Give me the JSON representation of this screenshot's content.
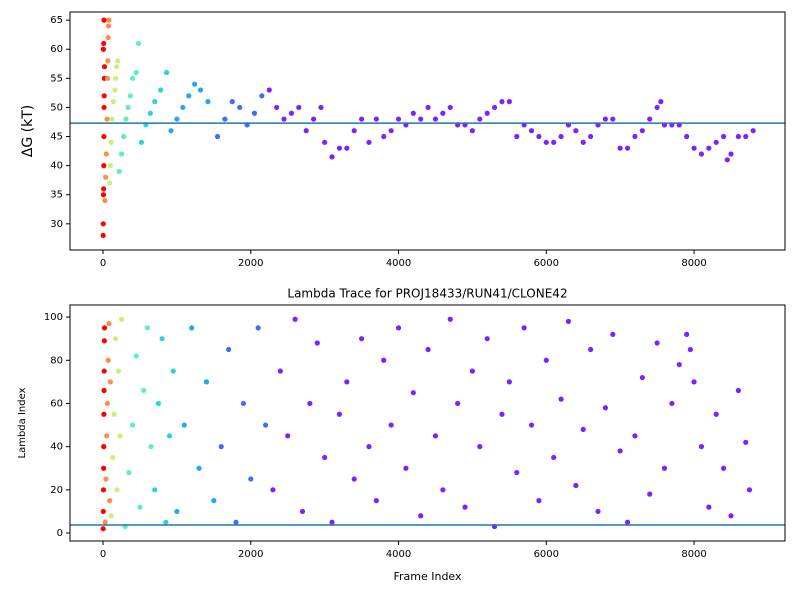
{
  "chart_data": [
    {
      "type": "scatter",
      "ylabel": "ΔG (kT)",
      "xlim": [
        -447,
        9231
      ],
      "ylim": [
        25.5,
        66.4
      ],
      "xticks": [
        0,
        2000,
        4000,
        6000,
        8000
      ],
      "yticks": [
        30,
        35,
        40,
        45,
        50,
        55,
        60,
        65
      ],
      "hline": {
        "value": 47.3,
        "color": "#1f77b4"
      },
      "series": [
        {
          "color": "#ff0000",
          "x": [
            2,
            4,
            6,
            8,
            10,
            12,
            14,
            16,
            18,
            20,
            5,
            9,
            13
          ],
          "values": [
            28,
            30,
            35,
            36,
            40,
            45,
            50,
            52,
            55,
            57,
            60,
            61,
            65
          ]
        },
        {
          "color": "#ff8c4a",
          "x": [
            25,
            35,
            45,
            55,
            60,
            65,
            70,
            75,
            80
          ],
          "values": [
            34,
            38,
            42,
            48,
            55,
            58,
            62,
            64,
            65
          ]
        },
        {
          "color": "#c8f07a",
          "x": [
            90,
            100,
            110,
            120,
            140,
            160,
            170,
            185,
            200
          ],
          "values": [
            37,
            40,
            44,
            48,
            51,
            53,
            55,
            57,
            58
          ]
        },
        {
          "color": "#5ef0b8",
          "x": [
            220,
            250,
            280,
            310,
            340,
            370,
            400,
            450,
            480
          ],
          "values": [
            39,
            42,
            45,
            48,
            50,
            52,
            55,
            56,
            61
          ]
        },
        {
          "color": "#28d4e0",
          "x": [
            520,
            580,
            640,
            700,
            780,
            860
          ],
          "values": [
            44,
            47,
            49,
            51,
            53,
            56
          ]
        },
        {
          "color": "#20a8f0",
          "x": [
            920,
            1000,
            1080,
            1160,
            1240,
            1320,
            1420
          ],
          "values": [
            46,
            48,
            50,
            52,
            54,
            53,
            51
          ]
        },
        {
          "color": "#3c6ef8",
          "x": [
            1550,
            1650,
            1750,
            1850,
            1950,
            2050,
            2150
          ],
          "values": [
            45,
            48,
            51,
            50,
            47,
            49,
            52
          ]
        },
        {
          "color": "#7f20ff",
          "x": [
            2250,
            2350,
            2450,
            2550,
            2650,
            2750,
            2850,
            2950,
            3000,
            3100,
            3200,
            3300,
            3400,
            3500,
            3600,
            3700,
            3800,
            3900,
            4000,
            4100,
            4200,
            4300,
            4400,
            4500,
            4600,
            4700,
            4800,
            4900,
            5000,
            5100,
            5200,
            5300,
            5400,
            5500,
            5600,
            5700,
            5800,
            5900,
            6000,
            6100,
            6200,
            6300,
            6400,
            6500,
            6600,
            6700,
            6800,
            6900,
            7000,
            7100,
            7200,
            7300,
            7400,
            7500,
            7550,
            7600,
            7700,
            7800,
            7900,
            8000,
            8100,
            8200,
            8300,
            8400,
            8450,
            8500,
            8600,
            8700,
            8800
          ],
          "values": [
            53,
            50,
            48,
            49,
            50,
            46,
            48,
            50,
            44,
            41.5,
            43,
            43,
            46,
            48,
            44,
            48,
            45,
            46,
            48,
            47,
            49,
            48,
            50,
            48,
            49,
            50,
            47,
            47,
            46,
            48,
            49,
            50,
            51,
            51,
            45,
            47,
            46,
            45,
            44,
            44,
            45,
            47,
            46,
            44,
            45,
            47,
            48,
            48,
            43,
            43,
            45,
            46,
            48,
            50,
            51,
            47,
            47,
            47,
            45,
            43,
            42,
            43,
            44,
            45,
            41,
            42,
            45,
            45,
            46
          ]
        }
      ]
    },
    {
      "type": "scatter",
      "title": "Lambda Trace for PROJ18433/RUN41/CLONE42",
      "xlabel": "Frame Index",
      "ylabel": "Lambda Index",
      "xlim": [
        -447,
        9231
      ],
      "ylim": [
        -3.7,
        105.6
      ],
      "xticks": [
        0,
        2000,
        4000,
        6000,
        8000
      ],
      "yticks": [
        0,
        20,
        40,
        60,
        80,
        100
      ],
      "hline": {
        "value": 3.7,
        "color": "#1f77b4"
      },
      "series": [
        {
          "color": "#ff0000",
          "x": [
            2,
            4,
            6,
            8,
            10,
            12,
            14,
            16,
            18,
            20
          ],
          "values": [
            2,
            10,
            20,
            30,
            40,
            55,
            66,
            75,
            89,
            95
          ]
        },
        {
          "color": "#ff8c4a",
          "x": [
            30,
            40,
            50,
            60,
            70,
            80,
            90,
            100
          ],
          "values": [
            5,
            25,
            45,
            60,
            80,
            97,
            15,
            70
          ]
        },
        {
          "color": "#c8f07a",
          "x": [
            110,
            130,
            150,
            170,
            190,
            210,
            230,
            250
          ],
          "values": [
            8,
            35,
            55,
            90,
            20,
            75,
            45,
            99
          ]
        },
        {
          "color": "#5ef0b8",
          "x": [
            300,
            350,
            400,
            450,
            500,
            550,
            600,
            650
          ],
          "values": [
            3,
            28,
            50,
            82,
            12,
            66,
            95,
            40
          ]
        },
        {
          "color": "#28d4e0",
          "x": [
            700,
            750,
            800,
            850,
            900,
            950
          ],
          "values": [
            20,
            60,
            90,
            5,
            45,
            75
          ]
        },
        {
          "color": "#20a8f0",
          "x": [
            1000,
            1100,
            1200,
            1300,
            1400,
            1500
          ],
          "values": [
            10,
            50,
            95,
            30,
            70,
            15
          ]
        },
        {
          "color": "#3c6ef8",
          "x": [
            1600,
            1700,
            1800,
            1900,
            2000,
            2100,
            2200
          ],
          "values": [
            40,
            85,
            5,
            60,
            25,
            95,
            50
          ]
        },
        {
          "color": "#7f20ff",
          "x": [
            2300,
            2400,
            2500,
            2600,
            2700,
            2800,
            2900,
            3000,
            3100,
            3200,
            3300,
            3400,
            3500,
            3600,
            3700,
            3800,
            3900,
            4000,
            4100,
            4200,
            4300,
            4400,
            4500,
            4600,
            4700,
            4800,
            4900,
            5000,
            5100,
            5200,
            5300,
            5400,
            5500,
            5600,
            5700,
            5800,
            5900,
            6000,
            6100,
            6200,
            6300,
            6400,
            6500,
            6600,
            6700,
            6800,
            6900,
            7000,
            7100,
            7200,
            7300,
            7400,
            7500,
            7600,
            7700,
            7800,
            7900,
            7950,
            8000,
            8100,
            8200,
            8300,
            8400,
            8500,
            8600,
            8700,
            8750
          ],
          "values": [
            20,
            75,
            45,
            99,
            10,
            60,
            88,
            35,
            5,
            55,
            70,
            25,
            90,
            40,
            15,
            80,
            50,
            95,
            30,
            65,
            8,
            85,
            45,
            20,
            99,
            60,
            12,
            75,
            40,
            90,
            3,
            55,
            70,
            28,
            95,
            50,
            15,
            80,
            35,
            62,
            98,
            22,
            48,
            85,
            10,
            58,
            92,
            38,
            5,
            45,
            72,
            18,
            88,
            30,
            60,
            78,
            92,
            85,
            70,
            40,
            12,
            55,
            30,
            8,
            66,
            42,
            20
          ]
        }
      ]
    }
  ]
}
